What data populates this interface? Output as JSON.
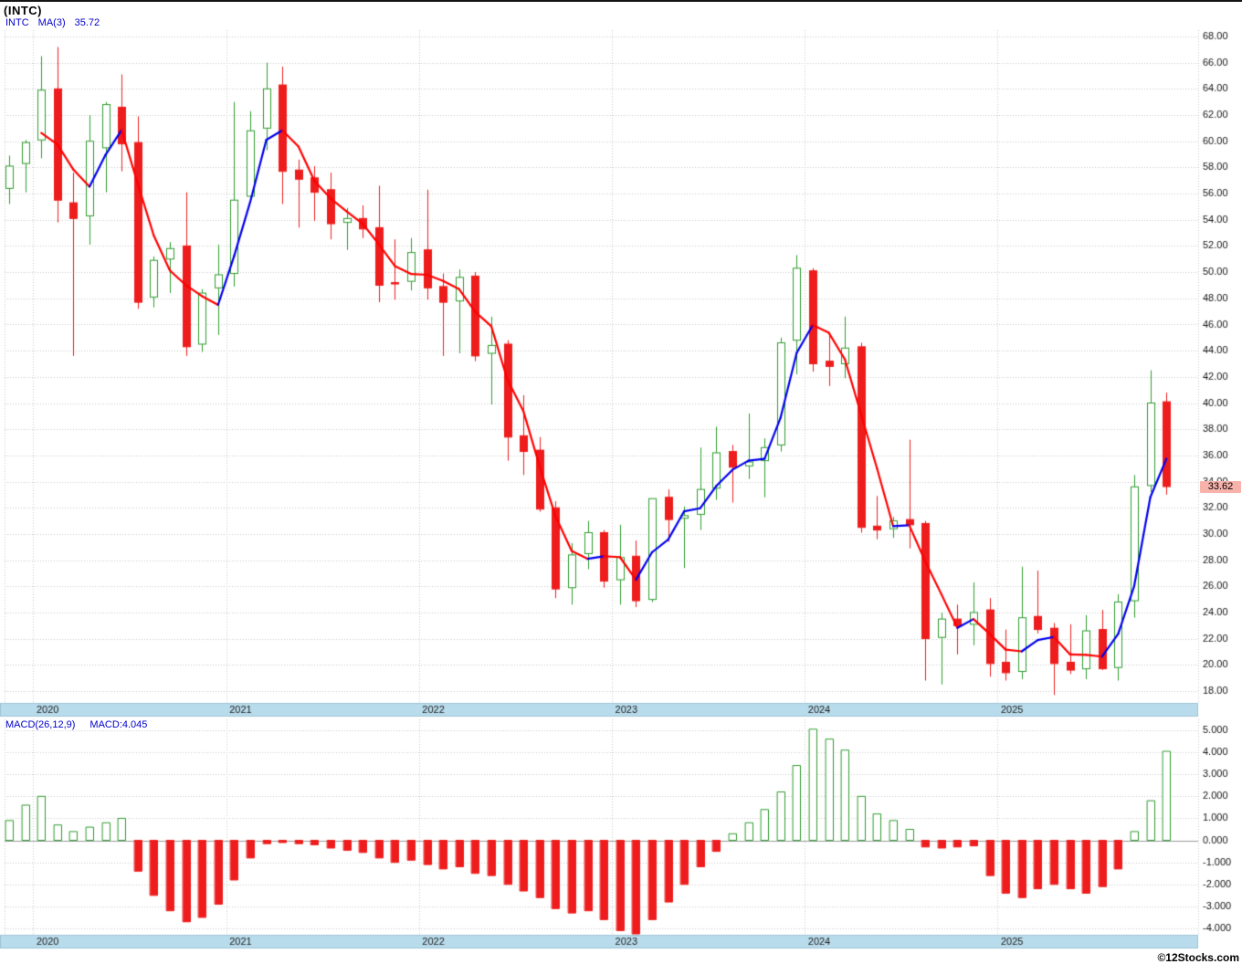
{
  "header": {
    "title": "(INTC)",
    "legend": {
      "symbol": "INTC",
      "ma_label": "MA(3)",
      "ma_value": "35.72"
    }
  },
  "macd_panel": {
    "label": "MACD(26,12,9)",
    "value_label": "MACD:4.045"
  },
  "price_axis_label": "33.62",
  "footer": {
    "copyright": "©12Stocks.com"
  },
  "colors": {
    "up_candle": "#2e9c2e",
    "down_candle": "#ee1c1c",
    "ma_rising": "#0000ee",
    "ma_falling": "#ff0000",
    "grid": "#c9c9c9",
    "zero_line": "#9a9a9a",
    "axis_text": "#111111",
    "year_band_bg": "#b9dcec",
    "year_band_text": "#1c1c1c",
    "legend_text": "#0000cc",
    "price_label_bg": "#f7b3ab"
  },
  "chart_data": [
    {
      "type": "candlestick",
      "title": "(INTC)",
      "symbol": "INTC",
      "overlay": "MA(3) colored by direction (blue rising / red falling)",
      "ma_period": 3,
      "last_price": 33.62,
      "ylim": [
        17.5,
        68.7
      ],
      "y_ticks": [
        18,
        20,
        22,
        24,
        26,
        28,
        30,
        32,
        34,
        36,
        38,
        40,
        42,
        44,
        46,
        48,
        50,
        52,
        54,
        56,
        58,
        60,
        62,
        64,
        66,
        68
      ],
      "year_labels": [
        {
          "label": "2020",
          "index": 2
        },
        {
          "label": "2021",
          "index": 14
        },
        {
          "label": "2022",
          "index": 26
        },
        {
          "label": "2023",
          "index": 38
        },
        {
          "label": "2024",
          "index": 50
        },
        {
          "label": "2025",
          "index": 62
        }
      ],
      "months": [
        "2019-11",
        "2019-12",
        "2020-01",
        "2020-02",
        "2020-03",
        "2020-04",
        "2020-05",
        "2020-06",
        "2020-07",
        "2020-08",
        "2020-09",
        "2020-10",
        "2020-11",
        "2020-12",
        "2021-01",
        "2021-02",
        "2021-03",
        "2021-04",
        "2021-05",
        "2021-06",
        "2021-07",
        "2021-08",
        "2021-09",
        "2021-10",
        "2021-11",
        "2021-12",
        "2022-01",
        "2022-02",
        "2022-03",
        "2022-04",
        "2022-05",
        "2022-06",
        "2022-07",
        "2022-08",
        "2022-09",
        "2022-10",
        "2022-11",
        "2022-12",
        "2023-01",
        "2023-02",
        "2023-03",
        "2023-04",
        "2023-05",
        "2023-06",
        "2023-07",
        "2023-08",
        "2023-09",
        "2023-10",
        "2023-11",
        "2023-12",
        "2024-01",
        "2024-02",
        "2024-03",
        "2024-04",
        "2024-05",
        "2024-06",
        "2024-07",
        "2024-08",
        "2024-09",
        "2024-10",
        "2024-11",
        "2024-12",
        "2025-01",
        "2025-02",
        "2025-03",
        "2025-04",
        "2025-05",
        "2025-06",
        "2025-07",
        "2025-08",
        "2025-09",
        "2025-10",
        "2025-11"
      ],
      "open": [
        56.4,
        58.3,
        60.1,
        64.0,
        55.3,
        54.3,
        59.5,
        62.6,
        59.9,
        48.1,
        51.0,
        52.0,
        44.5,
        48.8,
        49.9,
        55.8,
        61.0,
        64.3,
        57.8,
        57.2,
        56.3,
        53.8,
        54.1,
        53.4,
        49.2,
        49.3,
        51.7,
        48.9,
        47.8,
        49.7,
        43.8,
        44.5,
        37.5,
        36.4,
        32.0,
        25.9,
        28.5,
        30.1,
        26.5,
        28.3,
        25.0,
        32.8,
        31.2,
        31.5,
        33.5,
        36.3,
        35.2,
        35.6,
        36.8,
        44.8,
        50.1,
        43.2,
        43.0,
        44.3,
        30.6,
        30.4,
        31.1,
        30.8,
        22.1,
        23.5,
        23.1,
        24.2,
        20.2,
        19.5,
        23.7,
        22.8,
        20.2,
        19.7,
        22.7,
        19.8,
        24.9,
        33.7,
        40.1
      ],
      "high": [
        58.9,
        60.1,
        66.5,
        67.2,
        57.6,
        62.0,
        63.0,
        65.1,
        61.9,
        51.2,
        52.3,
        56.1,
        48.7,
        52.1,
        63.0,
        62.3,
        66.0,
        65.7,
        58.6,
        58.1,
        57.6,
        54.9,
        55.1,
        56.6,
        52.5,
        52.6,
        56.3,
        49.9,
        50.2,
        50.0,
        46.6,
        44.8,
        40.6,
        37.4,
        32.5,
        29.3,
        31.0,
        30.3,
        30.7,
        29.5,
        32.7,
        33.4,
        32.1,
        36.6,
        38.2,
        36.8,
        39.2,
        37.3,
        45.0,
        51.3,
        50.3,
        45.4,
        46.6,
        44.6,
        32.9,
        31.3,
        37.2,
        31.0,
        24.0,
        24.6,
        26.3,
        25.1,
        22.7,
        27.5,
        27.2,
        23.2,
        23.1,
        23.8,
        24.2,
        25.4,
        34.5,
        42.5,
        40.8
      ],
      "low": [
        55.2,
        56.1,
        58.7,
        53.8,
        43.6,
        52.1,
        56.1,
        57.7,
        47.2,
        47.3,
        48.4,
        43.6,
        43.9,
        45.2,
        48.9,
        55.4,
        59.3,
        55.2,
        53.4,
        53.9,
        52.5,
        51.7,
        52.6,
        47.7,
        47.9,
        48.6,
        47.9,
        43.6,
        43.8,
        43.2,
        39.9,
        35.6,
        34.5,
        31.7,
        25.1,
        24.6,
        27.3,
        25.9,
        24.6,
        24.4,
        24.8,
        29.4,
        27.4,
        30.3,
        32.6,
        32.4,
        34.2,
        32.8,
        36.3,
        42.2,
        42.4,
        41.3,
        41.9,
        30.1,
        29.6,
        29.7,
        28.9,
        18.8,
        18.5,
        20.8,
        21.5,
        19.1,
        18.8,
        18.9,
        22.4,
        17.7,
        19.3,
        18.9,
        19.6,
        18.8,
        23.6,
        33.2,
        33.0
      ],
      "close": [
        58.1,
        59.9,
        63.9,
        55.5,
        54.1,
        60.0,
        62.8,
        59.8,
        47.7,
        50.9,
        51.8,
        44.3,
        48.4,
        49.8,
        55.5,
        60.8,
        64.0,
        57.7,
        57.1,
        56.1,
        53.7,
        54.1,
        53.3,
        49.0,
        49.1,
        51.5,
        48.8,
        47.7,
        49.6,
        43.6,
        44.4,
        37.4,
        36.3,
        31.9,
        25.8,
        28.4,
        30.1,
        26.4,
        28.2,
        24.9,
        32.7,
        31.1,
        31.4,
        33.4,
        36.2,
        35.1,
        35.5,
        36.6,
        44.6,
        50.3,
        43.0,
        42.8,
        44.2,
        30.5,
        30.3,
        31.0,
        30.7,
        22.0,
        23.5,
        23.0,
        24.0,
        20.1,
        19.4,
        23.6,
        22.7,
        20.1,
        19.6,
        22.6,
        19.7,
        24.8,
        33.6,
        40.0,
        33.62
      ]
    },
    {
      "type": "bar",
      "name": "MACD(26,12,9)",
      "last_value": 4.045,
      "ylim": [
        -4.4,
        5.2
      ],
      "y_ticks": [
        5,
        4,
        3,
        2,
        1,
        0,
        -1,
        -2,
        -3,
        -4
      ],
      "values": [
        0.9,
        1.6,
        2.0,
        0.7,
        0.4,
        0.6,
        0.8,
        1.0,
        -1.4,
        -2.5,
        -3.2,
        -3.7,
        -3.5,
        -2.9,
        -1.8,
        -0.8,
        -0.15,
        -0.1,
        -0.15,
        -0.2,
        -0.35,
        -0.45,
        -0.55,
        -0.8,
        -1.0,
        -0.9,
        -1.1,
        -1.3,
        -1.2,
        -1.5,
        -1.6,
        -2.0,
        -2.3,
        -2.6,
        -3.1,
        -3.3,
        -3.2,
        -3.6,
        -4.1,
        -4.25,
        -3.6,
        -2.8,
        -2.0,
        -1.2,
        -0.5,
        0.3,
        0.8,
        1.4,
        2.2,
        3.4,
        5.05,
        4.6,
        4.1,
        2.0,
        1.2,
        0.9,
        0.5,
        -0.3,
        -0.35,
        -0.3,
        -0.25,
        -1.6,
        -2.4,
        -2.6,
        -2.2,
        -2.0,
        -2.2,
        -2.4,
        -2.1,
        -1.3,
        0.4,
        1.8,
        4.045
      ]
    }
  ]
}
